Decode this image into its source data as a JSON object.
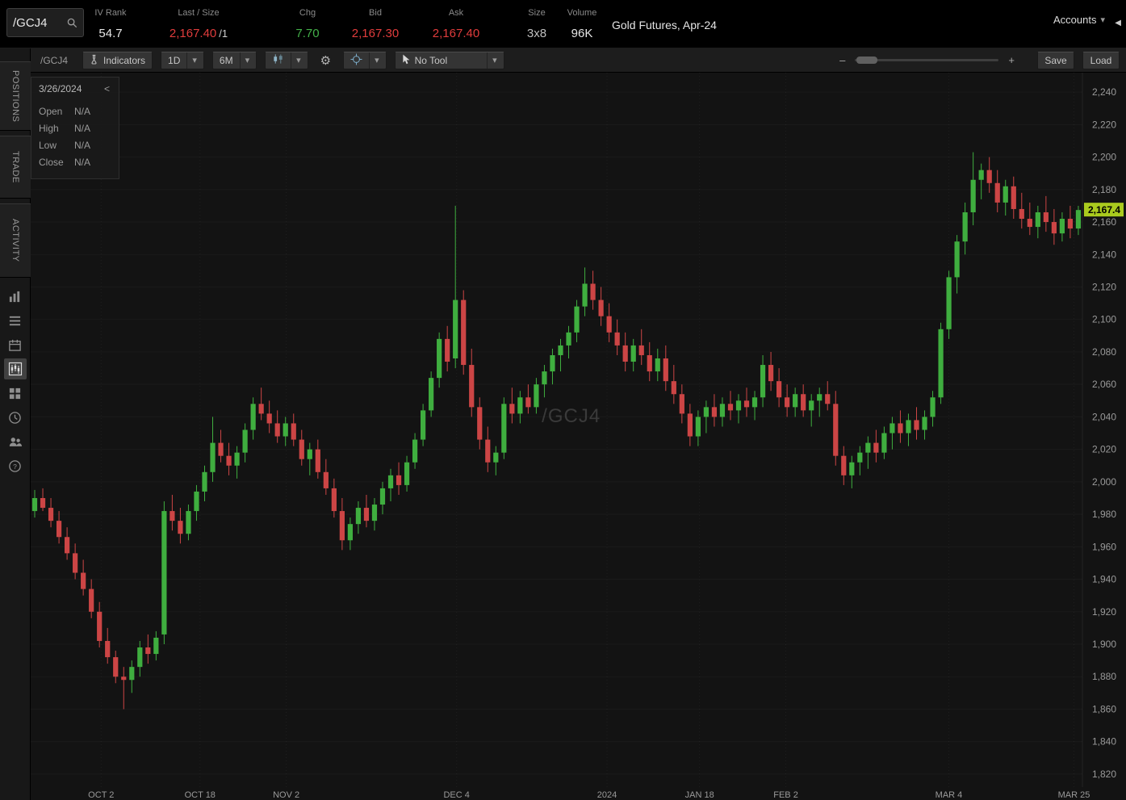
{
  "header": {
    "symbol_input": "/GCJ4",
    "iv_rank_label": "IV Rank",
    "iv_rank_value": "54.7",
    "last_label": "Last / Size",
    "last_value": "2,167.40",
    "last_size": "/1",
    "chg_label": "Chg",
    "chg_value": "7.70",
    "bid_label": "Bid",
    "bid_value": "2,167.30",
    "ask_label": "Ask",
    "ask_value": "2,167.40",
    "size_label": "Size",
    "size_value": "3x8",
    "volume_label": "Volume",
    "volume_value": "96K",
    "instrument_name": "Gold Futures, Apr-24",
    "accounts_label": "Accounts"
  },
  "icons": {
    "chevron_down": "▾",
    "collapse_left": "◀",
    "gear": "⚙",
    "prev_arrow": "<"
  },
  "sidebar": {
    "tabs": [
      {
        "label": "POSITIONS"
      },
      {
        "label": "TRADE"
      },
      {
        "label": "ACTIVITY"
      }
    ]
  },
  "toolbar": {
    "symbol_label": "/GCJ4",
    "indicators": "Indicators",
    "timeframe": "1D",
    "range": "6M",
    "no_tool": "No Tool",
    "zoom_minus": "–",
    "zoom_plus": "+",
    "save": "Save",
    "load": "Load"
  },
  "ohlc_panel": {
    "date": "3/26/2024",
    "rows": [
      {
        "label": "Open",
        "value": "N/A"
      },
      {
        "label": "High",
        "value": "N/A"
      },
      {
        "label": "Low",
        "value": "N/A"
      },
      {
        "label": "Close",
        "value": "N/A"
      }
    ]
  },
  "chart_data": {
    "type": "candlestick",
    "symbol": "/GCJ4",
    "watermark": "/GCJ4",
    "title": "Gold Futures, Apr-24",
    "timeframe": "1D",
    "range": "6M",
    "last_price": 2167.4,
    "last_price_label": "2,167.4",
    "ylim": [
      1812,
      2252
    ],
    "y_ticks": [
      1820,
      1840,
      1860,
      1880,
      1900,
      1920,
      1940,
      1960,
      1980,
      2000,
      2020,
      2040,
      2060,
      2080,
      2100,
      2120,
      2140,
      2160,
      2180,
      2200,
      2220,
      2240
    ],
    "x_labels": [
      {
        "label": "OCT 2",
        "pct": 0.067
      },
      {
        "label": "OCT 18",
        "pct": 0.161
      },
      {
        "label": "NOV 2",
        "pct": 0.243
      },
      {
        "label": "DEC 4",
        "pct": 0.405
      },
      {
        "label": "2024",
        "pct": 0.548
      },
      {
        "label": "JAN 18",
        "pct": 0.636
      },
      {
        "label": "FEB 2",
        "pct": 0.718
      },
      {
        "label": "MAR 4",
        "pct": 0.873
      },
      {
        "label": "MAR 25",
        "pct": 0.992
      }
    ],
    "colors": {
      "up": "#3fae3f",
      "down": "#cc4545",
      "tag_bg": "#aacb1e",
      "tag_text": "#000000",
      "axis_text": "#9a9a9a",
      "watermark": "#5a5a5a",
      "header_red": "#e03c3c",
      "header_green": "#43b049"
    },
    "candles": [
      [
        1982,
        1995,
        1978,
        1990
      ],
      [
        1990,
        1996,
        1982,
        1984
      ],
      [
        1984,
        1990,
        1972,
        1976
      ],
      [
        1976,
        1982,
        1962,
        1966
      ],
      [
        1966,
        1972,
        1952,
        1956
      ],
      [
        1956,
        1962,
        1940,
        1944
      ],
      [
        1944,
        1952,
        1930,
        1934
      ],
      [
        1934,
        1940,
        1916,
        1920
      ],
      [
        1920,
        1926,
        1898,
        1902
      ],
      [
        1902,
        1910,
        1888,
        1892
      ],
      [
        1892,
        1896,
        1876,
        1880
      ],
      [
        1880,
        1886,
        1860,
        1878
      ],
      [
        1878,
        1890,
        1870,
        1886
      ],
      [
        1886,
        1902,
        1880,
        1898
      ],
      [
        1898,
        1906,
        1888,
        1894
      ],
      [
        1894,
        1908,
        1890,
        1904
      ],
      [
        1906,
        1988,
        1900,
        1982
      ],
      [
        1982,
        1992,
        1970,
        1976
      ],
      [
        1976,
        1984,
        1962,
        1968
      ],
      [
        1968,
        1986,
        1964,
        1982
      ],
      [
        1982,
        1998,
        1976,
        1994
      ],
      [
        1994,
        2010,
        1988,
        2006
      ],
      [
        2006,
        2040,
        2000,
        2024
      ],
      [
        2024,
        2032,
        2012,
        2016
      ],
      [
        2016,
        2024,
        2004,
        2010
      ],
      [
        2010,
        2022,
        2002,
        2018
      ],
      [
        2018,
        2036,
        2012,
        2032
      ],
      [
        2032,
        2052,
        2026,
        2048
      ],
      [
        2048,
        2058,
        2038,
        2042
      ],
      [
        2042,
        2050,
        2030,
        2036
      ],
      [
        2036,
        2044,
        2024,
        2028
      ],
      [
        2028,
        2040,
        2022,
        2036
      ],
      [
        2036,
        2042,
        2022,
        2026
      ],
      [
        2026,
        2032,
        2010,
        2014
      ],
      [
        2014,
        2024,
        2004,
        2020
      ],
      [
        2020,
        2026,
        2002,
        2006
      ],
      [
        2006,
        2014,
        1992,
        1996
      ],
      [
        1996,
        2002,
        1978,
        1982
      ],
      [
        1982,
        1990,
        1958,
        1964
      ],
      [
        1964,
        1978,
        1958,
        1974
      ],
      [
        1974,
        1988,
        1968,
        1984
      ],
      [
        1984,
        1992,
        1972,
        1976
      ],
      [
        1976,
        1990,
        1970,
        1986
      ],
      [
        1986,
        2000,
        1980,
        1996
      ],
      [
        1996,
        2008,
        1988,
        2004
      ],
      [
        2004,
        2012,
        1992,
        1998
      ],
      [
        1998,
        2016,
        1994,
        2012
      ],
      [
        2012,
        2030,
        2008,
        2026
      ],
      [
        2026,
        2048,
        2022,
        2044
      ],
      [
        2044,
        2068,
        2040,
        2064
      ],
      [
        2064,
        2092,
        2058,
        2088
      ],
      [
        2088,
        2096,
        2068,
        2074
      ],
      [
        2076,
        2170,
        2070,
        2112
      ],
      [
        2112,
        2118,
        2066,
        2072
      ],
      [
        2072,
        2082,
        2040,
        2046
      ],
      [
        2046,
        2052,
        2020,
        2026
      ],
      [
        2026,
        2034,
        2006,
        2012
      ],
      [
        2012,
        2022,
        2004,
        2018
      ],
      [
        2018,
        2052,
        2014,
        2048
      ],
      [
        2048,
        2058,
        2036,
        2042
      ],
      [
        2042,
        2056,
        2036,
        2052
      ],
      [
        2052,
        2060,
        2042,
        2046
      ],
      [
        2046,
        2064,
        2042,
        2060
      ],
      [
        2060,
        2072,
        2052,
        2068
      ],
      [
        2068,
        2082,
        2060,
        2078
      ],
      [
        2078,
        2088,
        2068,
        2084
      ],
      [
        2084,
        2096,
        2076,
        2092
      ],
      [
        2092,
        2112,
        2086,
        2108
      ],
      [
        2108,
        2132,
        2102,
        2122
      ],
      [
        2122,
        2130,
        2106,
        2112
      ],
      [
        2112,
        2120,
        2096,
        2102
      ],
      [
        2102,
        2110,
        2086,
        2092
      ],
      [
        2092,
        2100,
        2078,
        2084
      ],
      [
        2084,
        2092,
        2068,
        2074
      ],
      [
        2074,
        2088,
        2068,
        2084
      ],
      [
        2084,
        2094,
        2072,
        2078
      ],
      [
        2078,
        2086,
        2062,
        2068
      ],
      [
        2068,
        2082,
        2062,
        2076
      ],
      [
        2076,
        2084,
        2056,
        2062
      ],
      [
        2062,
        2072,
        2048,
        2054
      ],
      [
        2054,
        2060,
        2036,
        2042
      ],
      [
        2042,
        2048,
        2022,
        2028
      ],
      [
        2028,
        2044,
        2022,
        2040
      ],
      [
        2040,
        2050,
        2030,
        2046
      ],
      [
        2046,
        2054,
        2034,
        2040
      ],
      [
        2040,
        2052,
        2034,
        2048
      ],
      [
        2048,
        2056,
        2038,
        2044
      ],
      [
        2044,
        2054,
        2036,
        2050
      ],
      [
        2050,
        2058,
        2040,
        2046
      ],
      [
        2046,
        2056,
        2038,
        2052
      ],
      [
        2052,
        2078,
        2046,
        2072
      ],
      [
        2072,
        2080,
        2056,
        2062
      ],
      [
        2062,
        2070,
        2046,
        2052
      ],
      [
        2052,
        2060,
        2040,
        2046
      ],
      [
        2046,
        2058,
        2040,
        2054
      ],
      [
        2054,
        2060,
        2040,
        2044
      ],
      [
        2044,
        2054,
        2034,
        2050
      ],
      [
        2050,
        2058,
        2040,
        2054
      ],
      [
        2054,
        2062,
        2044,
        2048
      ],
      [
        2048,
        2056,
        2010,
        2016
      ],
      [
        2016,
        2022,
        1998,
        2004
      ],
      [
        2004,
        2016,
        1996,
        2012
      ],
      [
        2012,
        2022,
        2004,
        2018
      ],
      [
        2018,
        2028,
        2008,
        2024
      ],
      [
        2024,
        2032,
        2012,
        2018
      ],
      [
        2018,
        2034,
        2014,
        2030
      ],
      [
        2030,
        2040,
        2020,
        2036
      ],
      [
        2036,
        2044,
        2024,
        2030
      ],
      [
        2030,
        2042,
        2022,
        2038
      ],
      [
        2038,
        2046,
        2026,
        2032
      ],
      [
        2032,
        2044,
        2026,
        2040
      ],
      [
        2040,
        2056,
        2034,
        2052
      ],
      [
        2052,
        2098,
        2048,
        2094
      ],
      [
        2094,
        2130,
        2088,
        2126
      ],
      [
        2126,
        2152,
        2116,
        2148
      ],
      [
        2148,
        2172,
        2140,
        2166
      ],
      [
        2166,
        2203,
        2158,
        2186
      ],
      [
        2186,
        2196,
        2174,
        2192
      ],
      [
        2192,
        2200,
        2178,
        2184
      ],
      [
        2184,
        2192,
        2166,
        2172
      ],
      [
        2172,
        2186,
        2164,
        2182
      ],
      [
        2182,
        2188,
        2162,
        2168
      ],
      [
        2168,
        2178,
        2156,
        2162
      ],
      [
        2162,
        2172,
        2152,
        2157
      ],
      [
        2157,
        2170,
        2150,
        2166
      ],
      [
        2166,
        2176,
        2154,
        2160
      ],
      [
        2160,
        2168,
        2146,
        2153
      ],
      [
        2153,
        2166,
        2148,
        2162
      ],
      [
        2162,
        2170,
        2150,
        2156
      ],
      [
        2156,
        2170,
        2152,
        2167.4
      ]
    ]
  }
}
